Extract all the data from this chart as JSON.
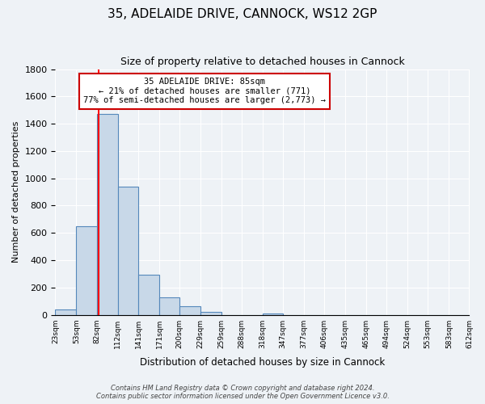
{
  "title": "35, ADELAIDE DRIVE, CANNOCK, WS12 2GP",
  "subtitle": "Size of property relative to detached houses in Cannock",
  "xlabel": "Distribution of detached houses by size in Cannock",
  "ylabel": "Number of detached properties",
  "bar_edges": [
    23,
    53,
    82,
    112,
    141,
    171,
    200,
    229,
    259,
    288,
    318,
    347,
    377,
    406,
    435,
    465,
    494,
    524,
    553,
    583,
    612
  ],
  "bar_heights": [
    40,
    651,
    1474,
    937,
    293,
    128,
    65,
    20,
    0,
    0,
    10,
    0,
    0,
    0,
    0,
    0,
    0,
    0,
    0,
    0
  ],
  "bar_color": "#c8d8e8",
  "bar_edge_color": "#5588bb",
  "tick_labels": [
    "23sqm",
    "53sqm",
    "82sqm",
    "112sqm",
    "141sqm",
    "171sqm",
    "200sqm",
    "229sqm",
    "259sqm",
    "288sqm",
    "318sqm",
    "347sqm",
    "377sqm",
    "406sqm",
    "435sqm",
    "465sqm",
    "494sqm",
    "524sqm",
    "553sqm",
    "583sqm",
    "612sqm"
  ],
  "ylim": [
    0,
    1800
  ],
  "yticks": [
    0,
    200,
    400,
    600,
    800,
    1000,
    1200,
    1400,
    1600,
    1800
  ],
  "red_line_x": 85,
  "annotation_title": "35 ADELAIDE DRIVE: 85sqm",
  "annotation_line1": "← 21% of detached houses are smaller (771)",
  "annotation_line2": "77% of semi-detached houses are larger (2,773) →",
  "annotation_box_color": "#ffffff",
  "annotation_box_edge": "#cc0000",
  "footer_line1": "Contains HM Land Registry data © Crown copyright and database right 2024.",
  "footer_line2": "Contains public sector information licensed under the Open Government Licence v3.0.",
  "background_color": "#eef2f6",
  "plot_background": "#eef2f6"
}
